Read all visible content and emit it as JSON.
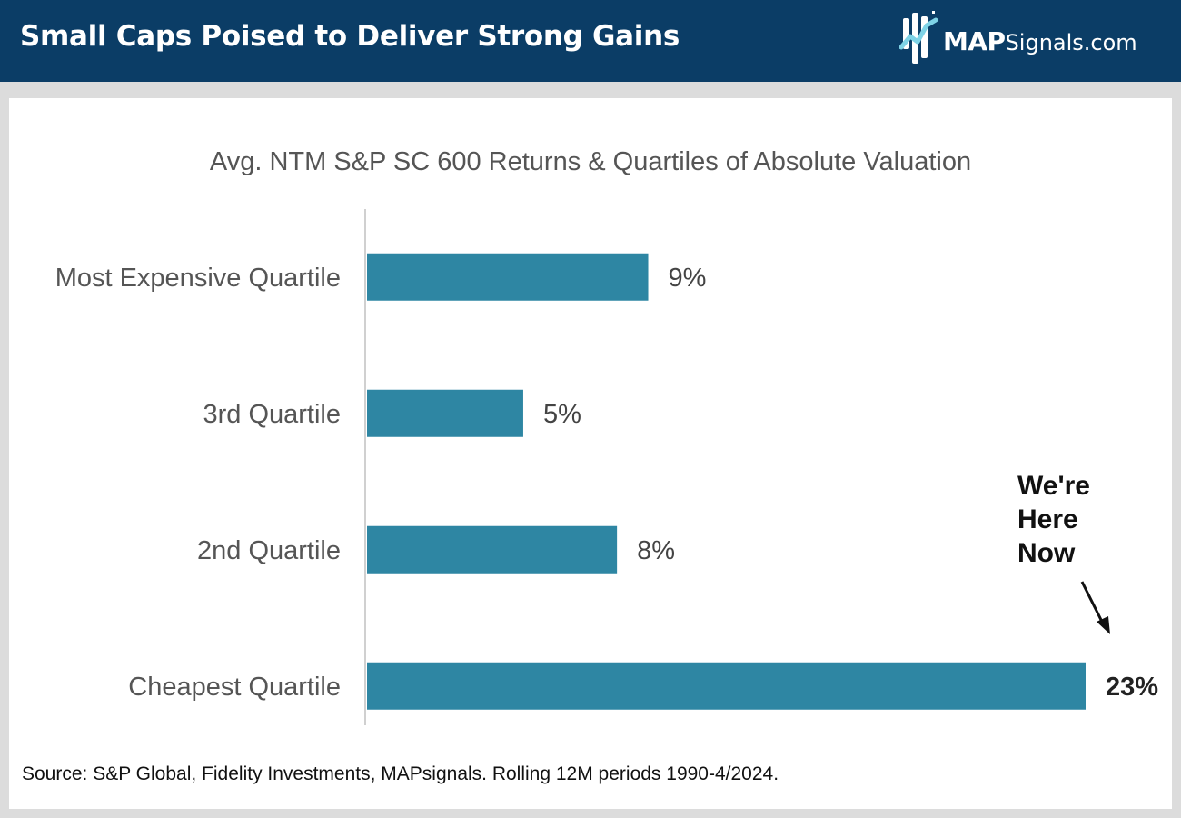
{
  "header": {
    "title": "Small Caps Poised to Deliver Strong Gains",
    "logo_bold": "MAP",
    "logo_rest": "Signals.com",
    "background": "#0b3d66",
    "logo_accent": "#7fd3e6"
  },
  "chart_data": {
    "type": "bar",
    "orientation": "horizontal",
    "title": "Avg. NTM S&P SC 600 Returns & Quartiles of Absolute Valuation",
    "categories": [
      "Most Expensive Quartile",
      "3rd Quartile",
      "2nd Quartile",
      "Cheapest Quartile"
    ],
    "values": [
      9,
      5,
      8,
      23
    ],
    "value_labels": [
      "9%",
      "5%",
      "8%",
      "23%"
    ],
    "highlight_index": 3,
    "unit": "%",
    "xlim": [
      0,
      23
    ],
    "grid": false,
    "bar_color": "#2e86a3",
    "annotation": {
      "lines": [
        "We're",
        "Here",
        "Now"
      ],
      "target_category": "Cheapest Quartile"
    }
  },
  "source": "Source: S&P Global, Fidelity Investments, MAPsignals. Rolling 12M periods 1990-4/2024."
}
